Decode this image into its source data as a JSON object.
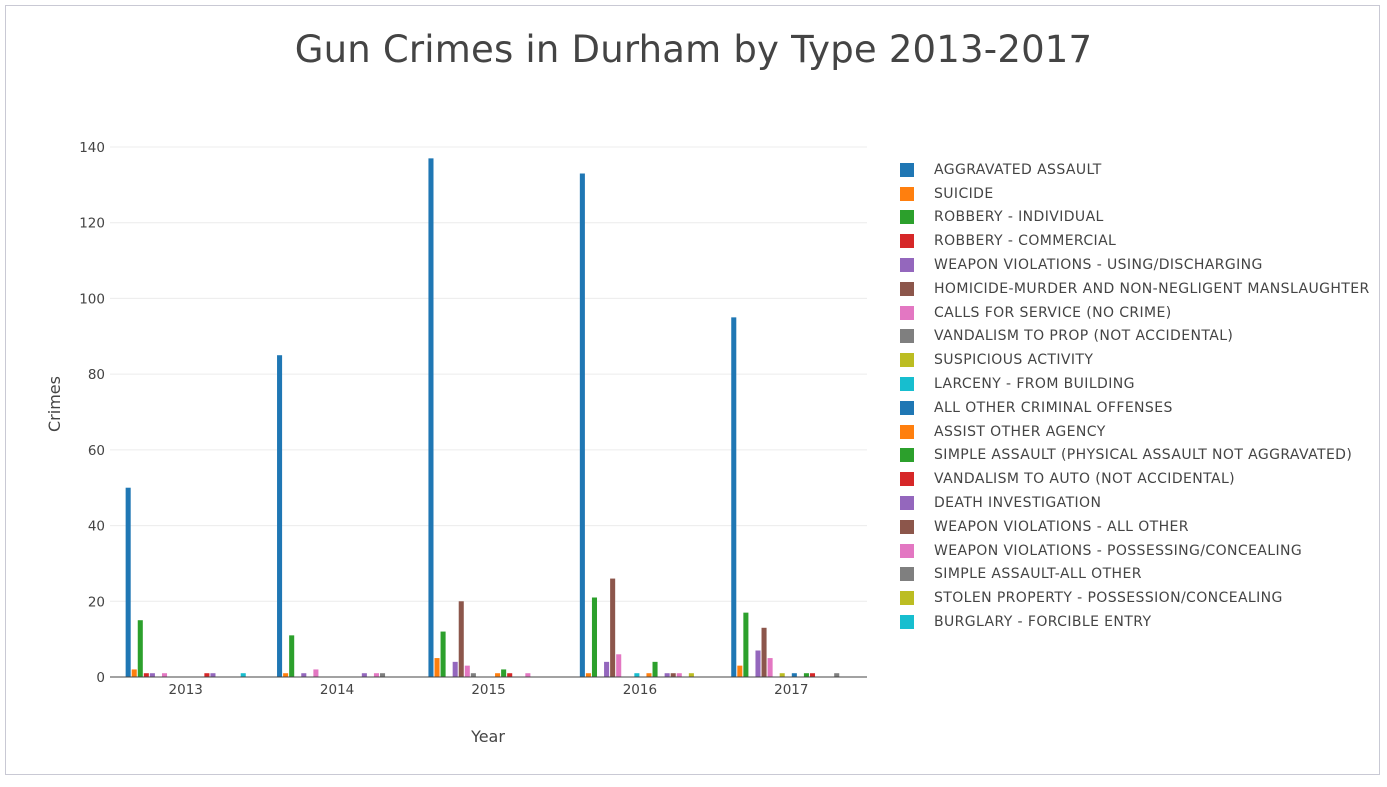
{
  "chart_data": {
    "type": "bar",
    "title": "Gun Crimes in Durham by Type 2013-2017",
    "xlabel": "Year",
    "ylabel": "Crimes",
    "categories": [
      "2013",
      "2014",
      "2015",
      "2016",
      "2017"
    ],
    "ylim": [
      0,
      140
    ],
    "yticks": [
      "0",
      "20",
      "40",
      "60",
      "80",
      "100",
      "120",
      "140"
    ],
    "grid": true,
    "legend_position": "right",
    "series": [
      {
        "name": "AGGRAVATED ASSAULT",
        "color": "#1f77b4",
        "values": [
          50,
          85,
          137,
          133,
          95
        ]
      },
      {
        "name": "SUICIDE",
        "color": "#ff7f0e",
        "values": [
          2,
          1,
          5,
          1,
          3
        ]
      },
      {
        "name": "ROBBERY - INDIVIDUAL",
        "color": "#2ca02c",
        "values": [
          15,
          11,
          12,
          21,
          17
        ]
      },
      {
        "name": "ROBBERY - COMMERCIAL",
        "color": "#d62728",
        "values": [
          1,
          0,
          0,
          0,
          0
        ]
      },
      {
        "name": "WEAPON VIOLATIONS - USING/DISCHARGING",
        "color": "#9467bd",
        "values": [
          1,
          1,
          4,
          4,
          7
        ]
      },
      {
        "name": "HOMICIDE-MURDER AND NON-NEGLIGENT MANSLAUGHTER",
        "color": "#8c564b",
        "values": [
          0,
          0,
          20,
          26,
          13
        ]
      },
      {
        "name": "CALLS FOR SERVICE (NO CRIME)",
        "color": "#e377c2",
        "values": [
          1,
          2,
          3,
          6,
          5
        ]
      },
      {
        "name": "VANDALISM TO PROP (NOT ACCIDENTAL)",
        "color": "#7f7f7f",
        "values": [
          0,
          0,
          1,
          0,
          0
        ]
      },
      {
        "name": "SUSPICIOUS ACTIVITY",
        "color": "#bcbd22",
        "values": [
          0,
          0,
          0,
          0,
          1
        ]
      },
      {
        "name": "LARCENY - FROM BUILDING",
        "color": "#17becf",
        "values": [
          0,
          0,
          0,
          1,
          0
        ]
      },
      {
        "name": "ALL OTHER CRIMINAL OFFENSES",
        "color": "#1f77b4",
        "values": [
          0,
          0,
          0,
          0,
          1
        ]
      },
      {
        "name": "ASSIST OTHER AGENCY",
        "color": "#ff7f0e",
        "values": [
          0,
          0,
          1,
          1,
          0
        ]
      },
      {
        "name": "SIMPLE ASSAULT (PHYSICAL ASSAULT NOT AGGRAVATED)",
        "color": "#2ca02c",
        "values": [
          0,
          0,
          2,
          4,
          1
        ]
      },
      {
        "name": "VANDALISM TO AUTO (NOT ACCIDENTAL)",
        "color": "#d62728",
        "values": [
          1,
          0,
          1,
          0,
          1
        ]
      },
      {
        "name": "DEATH INVESTIGATION",
        "color": "#9467bd",
        "values": [
          1,
          1,
          0,
          1,
          0
        ]
      },
      {
        "name": "WEAPON VIOLATIONS - ALL OTHER",
        "color": "#8c564b",
        "values": [
          0,
          0,
          0,
          1,
          0
        ]
      },
      {
        "name": "WEAPON VIOLATIONS - POSSESSING/CONCEALING",
        "color": "#e377c2",
        "values": [
          0,
          1,
          1,
          1,
          0
        ]
      },
      {
        "name": "SIMPLE ASSAULT-ALL OTHER",
        "color": "#7f7f7f",
        "values": [
          0,
          1,
          0,
          0,
          1
        ]
      },
      {
        "name": "STOLEN PROPERTY - POSSESSION/CONCEALING",
        "color": "#bcbd22",
        "values": [
          0,
          0,
          0,
          1,
          0
        ]
      },
      {
        "name": "BURGLARY - FORCIBLE ENTRY",
        "color": "#17becf",
        "values": [
          1,
          0,
          0,
          0,
          0
        ]
      }
    ]
  }
}
